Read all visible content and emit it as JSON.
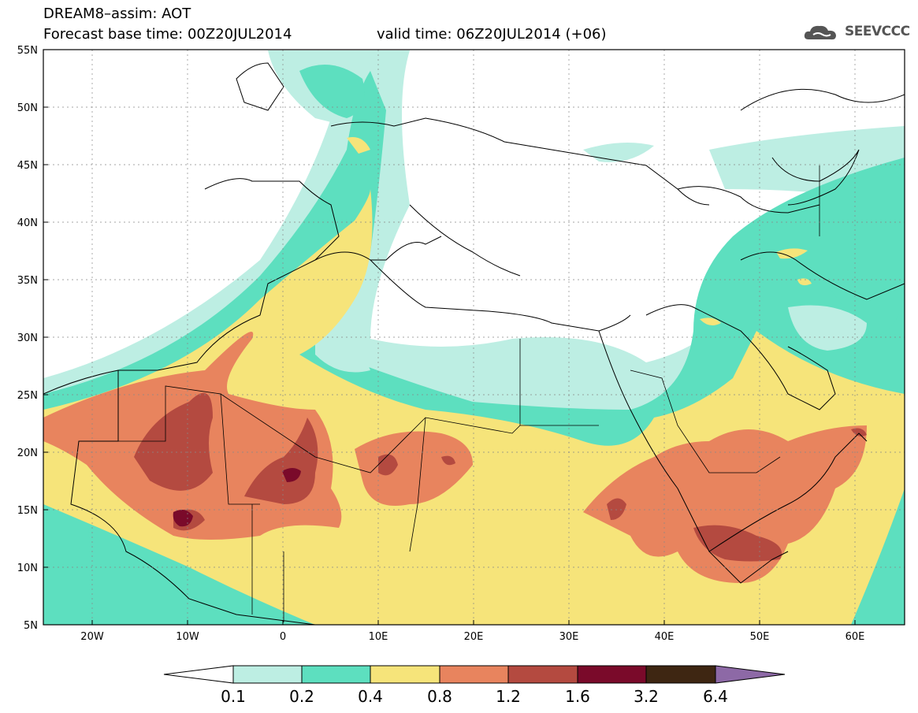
{
  "header": {
    "title_line1": "DREAM8–assim: AOT",
    "title_line2": "Forecast base time: 00Z20JUL2014",
    "valid_time": "valid time: 06Z20JUL2014 (+06)"
  },
  "logo": {
    "text": "SEEVCCC",
    "icon": "cloud-icon"
  },
  "map": {
    "lat_labels": [
      "55N",
      "50N",
      "45N",
      "40N",
      "35N",
      "30N",
      "25N",
      "20N",
      "15N",
      "10N",
      "5N"
    ],
    "lon_labels": [
      "20W",
      "10W",
      "0",
      "10E",
      "20E",
      "30E",
      "40E",
      "50E",
      "60E"
    ],
    "lat_range": [
      5,
      55
    ],
    "lon_range": [
      -25,
      65
    ]
  },
  "colorbar": {
    "labels": [
      "0.1",
      "0.2",
      "0.4",
      "0.8",
      "1.2",
      "1.6",
      "3.2",
      "6.4"
    ],
    "colors": [
      "#ffffff",
      "#bdeee3",
      "#5ddfbf",
      "#f6e47a",
      "#e8845e",
      "#b44a40",
      "#7a0a2a",
      "#3e2612",
      "#8d69a6"
    ]
  }
}
